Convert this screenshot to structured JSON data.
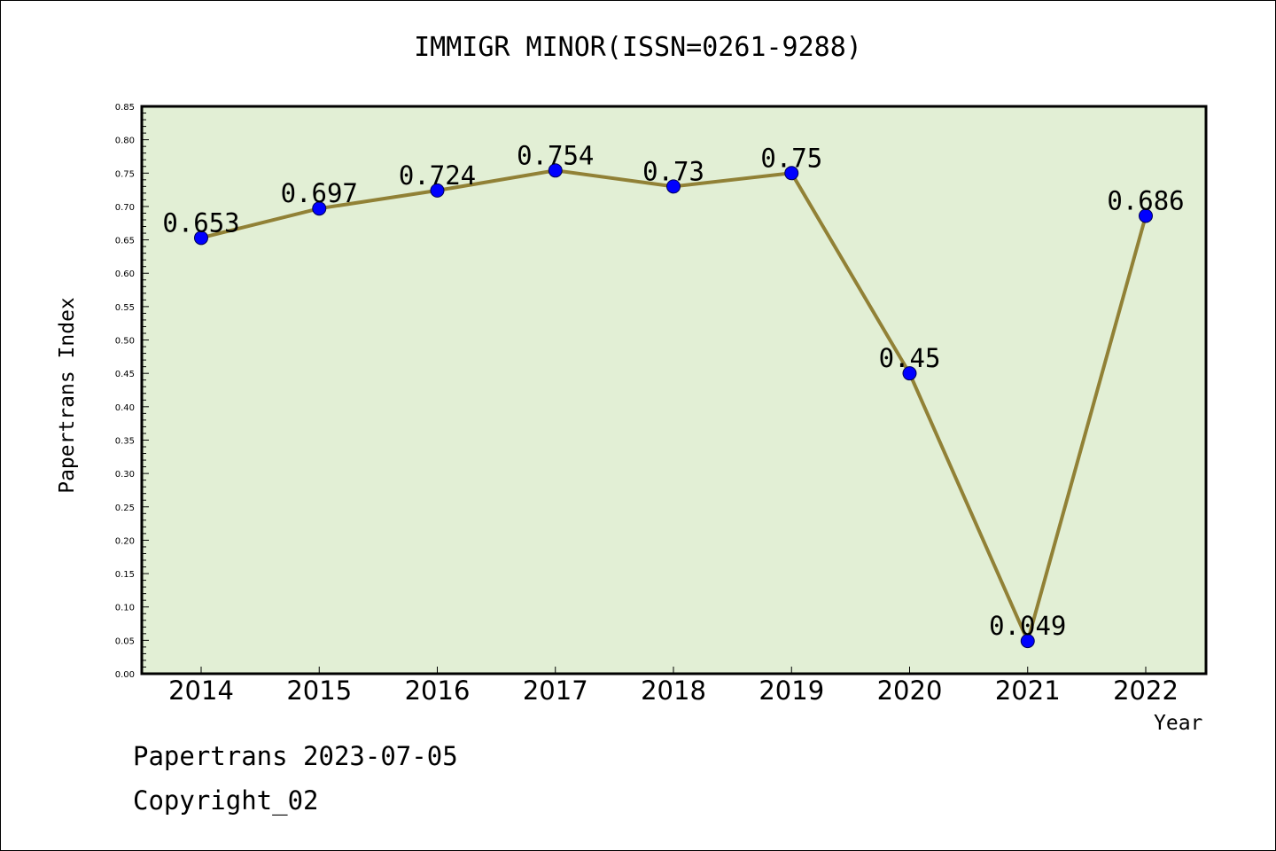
{
  "title": "IMMIGR MINOR(ISSN=0261-9288)",
  "footer": {
    "line1": "Papertrans 2023-07-05",
    "line2": "Copyright_02"
  },
  "colors": {
    "plot_background": "#e2efd5",
    "line": "#918136",
    "marker": "#0000ff"
  },
  "chart_data": {
    "type": "line",
    "title": "IMMIGR MINOR(ISSN=0261-9288)",
    "xlabel": "Year",
    "ylabel": "Papertrans Index",
    "categories": [
      "2014",
      "2015",
      "2016",
      "2017",
      "2018",
      "2019",
      "2020",
      "2021",
      "2022"
    ],
    "series": [
      {
        "values": [
          0.653,
          0.697,
          0.724,
          0.754,
          0.73,
          0.75,
          0.45,
          0.049,
          0.686
        ],
        "labels": [
          "0.653",
          "0.697",
          "0.724",
          "0.754",
          "0.73",
          "0.75",
          "0.45",
          "0.049",
          "0.686"
        ]
      }
    ],
    "ylim": [
      0,
      0.85
    ],
    "yticks": [
      "0.00",
      "0.05",
      "0.10",
      "0.15",
      "0.20",
      "0.25",
      "0.30",
      "0.35",
      "0.40",
      "0.45",
      "0.50",
      "0.55",
      "0.60",
      "0.65",
      "0.70",
      "0.75",
      "0.80",
      "0.85"
    ],
    "grid": false,
    "legend": "none"
  }
}
